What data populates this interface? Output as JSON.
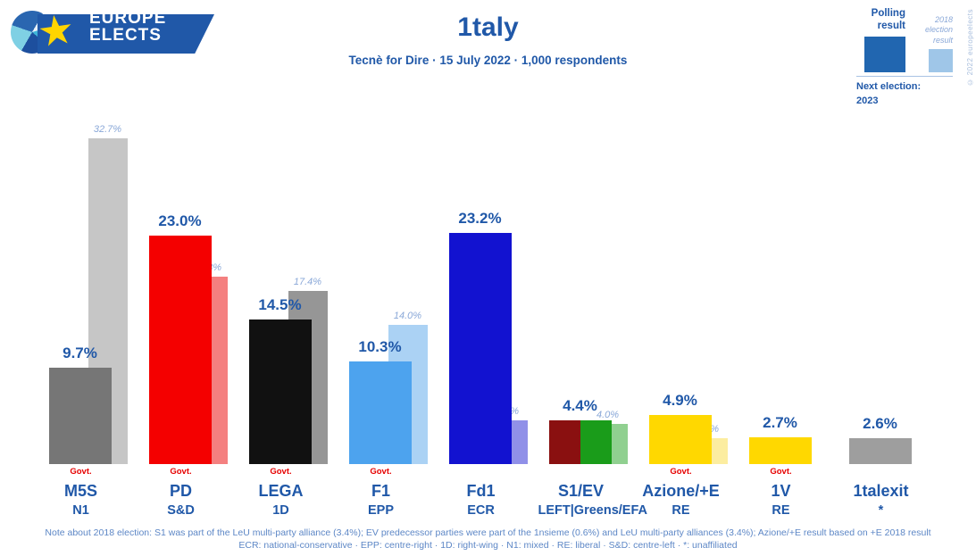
{
  "header": {
    "logo": {
      "line1": "EUROPE",
      "line2": "ELECTS"
    },
    "title": "1taly",
    "subtitle": "Tecnè for Dire · 15 July 2022 · 1,000 respondents"
  },
  "legend": {
    "polling_label": "Polling result",
    "prev_label": "2018 election result",
    "next_election_label": "Next election:",
    "next_election_value": "2023",
    "copyright": "© 2022 europeelects",
    "polling_color": "#2166b0",
    "prev_color": "#9fc6e8"
  },
  "footer": {
    "note": "Note about 2018 election: S1 was part of the LeU multi-party alliance (3.4%); EV predecessor parties were part of the 1nsieme (0.6%) and LeU multi-party alliances (3.4%); Azione/+E result based on +E 2018 result",
    "legend_line": "ECR: national-conservative · EPP: centre-right · 1D: right-wing · N1: mixed · RE: liberal · S&D: centre-left · *: unaffiliated"
  },
  "chart_data": {
    "type": "bar",
    "title": "1taly",
    "subtitle": "Tecnè for Dire · 15 July 2022 · 1,000 respondents",
    "unit": "%",
    "ylim": [
      0,
      33
    ],
    "legend_position": "top-right",
    "grid": false,
    "govt_label": "Govt.",
    "govt_color": "#e60000",
    "series_names": [
      "Polling result",
      "2018 election result"
    ],
    "parties": [
      {
        "name": "M5S",
        "group": "N1",
        "value": 9.7,
        "value_label": "9.7%",
        "colors": [
          "#767676"
        ],
        "prev": 32.7,
        "prev_label": "32.7%",
        "prev_color": "#c6c6c6",
        "govt": true
      },
      {
        "name": "PD",
        "group": "S&D",
        "value": 23.0,
        "value_label": "23.0%",
        "colors": [
          "#f40000"
        ],
        "prev": 18.8,
        "prev_label": "18.8%",
        "prev_color": "#f48080",
        "govt": true
      },
      {
        "name": "LEGA",
        "group": "1D",
        "value": 14.5,
        "value_label": "14.5%",
        "colors": [
          "#111111"
        ],
        "prev": 17.4,
        "prev_label": "17.4%",
        "prev_color": "#969696",
        "govt": true
      },
      {
        "name": "F1",
        "group": "EPP",
        "value": 10.3,
        "value_label": "10.3%",
        "colors": [
          "#4da3ee"
        ],
        "prev": 14.0,
        "prev_label": "14.0%",
        "prev_color": "#abd2f4",
        "govt": true
      },
      {
        "name": "Fd1",
        "group": "ECR",
        "value": 23.2,
        "value_label": "23.2%",
        "colors": [
          "#1212d0"
        ],
        "prev": 4.4,
        "prev_label": "4.4%",
        "prev_color": "#9090e8",
        "govt": false
      },
      {
        "name": "S1/EV",
        "group": "LEFT|Greens/EFA",
        "value": 4.4,
        "value_label": "4.4%",
        "colors": [
          "#8a1010",
          "#1a9c1a"
        ],
        "prev": 4.0,
        "prev_label": "4.0%",
        "prev_color": "#90d090",
        "govt": false
      },
      {
        "name": "Azione/+E",
        "group": "RE",
        "value": 4.9,
        "value_label": "4.9%",
        "colors": [
          "#ffd800"
        ],
        "prev": 2.6,
        "prev_label": "2.6%",
        "prev_color": "#fceda0",
        "govt": true
      },
      {
        "name": "1V",
        "group": "RE",
        "value": 2.7,
        "value_label": "2.7%",
        "colors": [
          "#ffd800"
        ],
        "prev": null,
        "prev_label": null,
        "prev_color": null,
        "govt": true
      },
      {
        "name": "1talexit",
        "group": "*",
        "value": 2.6,
        "value_label": "2.6%",
        "colors": [
          "#9e9e9e"
        ],
        "prev": null,
        "prev_label": null,
        "prev_color": null,
        "govt": false
      }
    ]
  }
}
